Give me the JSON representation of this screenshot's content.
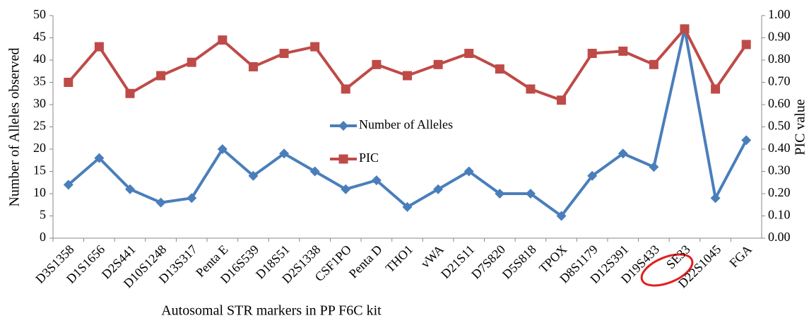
{
  "chart_data": {
    "type": "line",
    "categories": [
      "D3S1358",
      "D1S1656",
      "D2S441",
      "D10S1248",
      "D13S317",
      "Penta E",
      "D16S539",
      "D18S51",
      "D2S1338",
      "CSF1PO",
      "Penta D",
      "THO1",
      "vWA",
      "D21S11",
      "D7S820",
      "D5S818",
      "TPOX",
      "D8S1179",
      "D12S391",
      "D19S433",
      "SE33",
      "D22S1045",
      "FGA"
    ],
    "series": [
      {
        "name": "Number of Alleles",
        "color": "#4a7ebb",
        "marker": "diamond",
        "values": [
          12,
          18,
          11,
          8,
          9,
          20,
          14,
          19,
          15,
          11,
          13,
          7,
          11,
          15,
          10,
          10,
          5,
          14,
          19,
          16,
          47,
          9,
          22
        ]
      },
      {
        "name": "PIC",
        "color": "#be4b48",
        "marker": "square",
        "axis": "y2",
        "values": [
          0.7,
          0.86,
          0.65,
          0.73,
          0.79,
          0.89,
          0.77,
          0.83,
          0.86,
          0.67,
          0.78,
          0.73,
          0.78,
          0.83,
          0.76,
          0.67,
          0.62,
          0.83,
          0.84,
          0.78,
          0.94,
          0.67,
          0.87
        ]
      }
    ],
    "xlabel": "Autosomal STR markers in PP F6C kit",
    "ylabel": "Number of  Alleles  observed",
    "y2label": "PIC  value",
    "ylim": [
      0,
      50
    ],
    "yticks": [
      0,
      5,
      10,
      15,
      20,
      25,
      30,
      35,
      40,
      45,
      50
    ],
    "y2lim": [
      0,
      1
    ],
    "y2ticks": [
      {
        "value": 0,
        "label": "0.00"
      },
      {
        "value": 0.1,
        "label": "0.10"
      },
      {
        "value": 0.2,
        "label": "0.20"
      },
      {
        "value": 0.3,
        "label": "0.30"
      },
      {
        "value": 0.4,
        "label": "0.40"
      },
      {
        "value": 0.5,
        "label": "0.50"
      },
      {
        "value": 0.6,
        "label": "0.60"
      },
      {
        "value": 0.7,
        "label": "0.70"
      },
      {
        "value": 0.8,
        "label": "0.80"
      },
      {
        "value": 0.9,
        "label": "0.90"
      },
      {
        "value": 1,
        "label": "1.00"
      }
    ],
    "grid": false
  }
}
